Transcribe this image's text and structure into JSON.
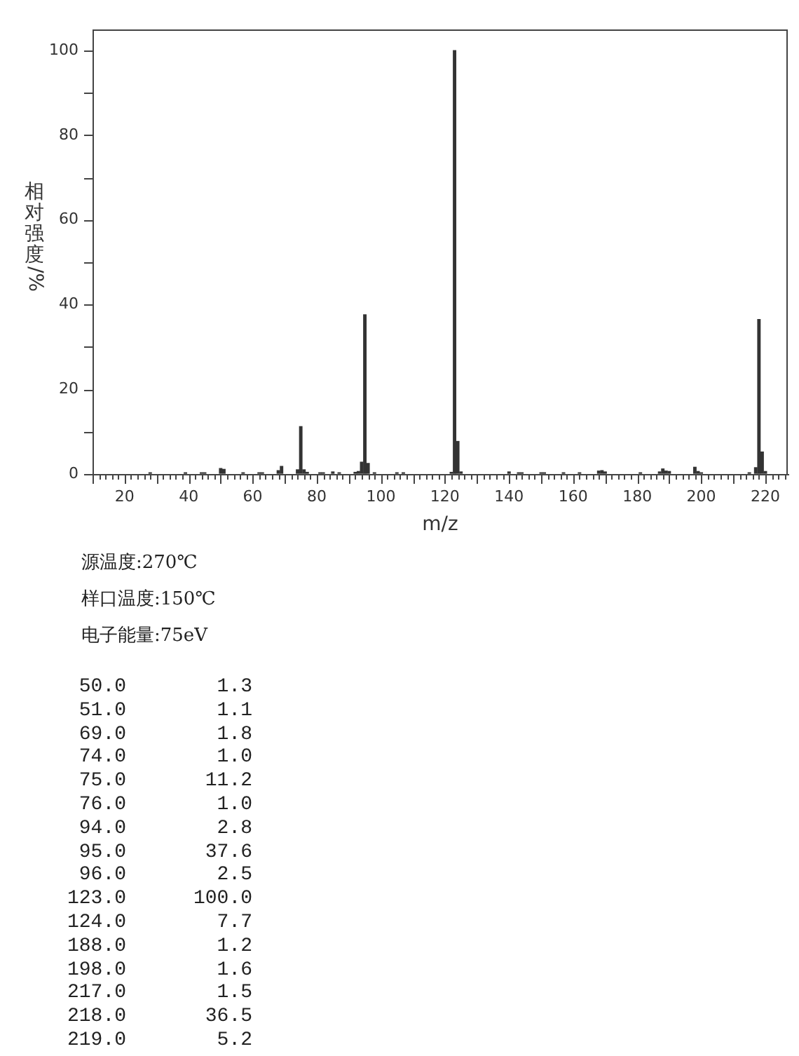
{
  "chart_data": [
    {
      "type": "bar",
      "xlabel": "m/z",
      "ylabel": "相对强度/%",
      "annotations": [
        "源温度:270℃",
        "样口温度:150℃",
        "电子能量:75eV"
      ],
      "series": [
        {
          "color": "#333333",
          "x": [
            28,
            39,
            44,
            45,
            50,
            51,
            57,
            62,
            63,
            68,
            69,
            74,
            75,
            76,
            77,
            81,
            82,
            85,
            87,
            92,
            93,
            94,
            95,
            96,
            98,
            105,
            107,
            122,
            123,
            124,
            125,
            140,
            143,
            144,
            150,
            151,
            157,
            162,
            168,
            169,
            170,
            181,
            187,
            188,
            189,
            190,
            198,
            199,
            200,
            215,
            217,
            218,
            219,
            220
          ],
          "values": [
            0.3,
            0.3,
            0.3,
            0.3,
            1.3,
            1.1,
            0.3,
            0.3,
            0.3,
            0.8,
            1.8,
            1.0,
            11.2,
            1.0,
            0.4,
            0.3,
            0.3,
            0.5,
            0.3,
            0.4,
            0.6,
            2.8,
            37.6,
            2.5,
            0.3,
            0.3,
            0.3,
            0.4,
            100.0,
            7.7,
            0.5,
            0.5,
            0.3,
            0.3,
            0.3,
            0.3,
            0.3,
            0.3,
            0.7,
            0.8,
            0.5,
            0.3,
            0.5,
            1.2,
            0.7,
            0.6,
            1.6,
            0.6,
            0.3,
            0.3,
            1.5,
            36.5,
            5.2,
            0.6
          ]
        }
      ],
      "xlim": [
        10,
        227
      ],
      "ylim": [
        0,
        105
      ],
      "xticks": [
        {
          "value": 10,
          "label": null
        },
        {
          "value": 12,
          "label": null
        },
        {
          "value": 14,
          "label": null
        },
        {
          "value": 16,
          "label": null
        },
        {
          "value": 18,
          "label": null
        },
        20,
        {
          "value": 22,
          "label": null
        },
        {
          "value": 24,
          "label": null
        },
        {
          "value": 26,
          "label": null
        },
        {
          "value": 28,
          "label": null
        },
        {
          "value": 30,
          "label": null
        },
        {
          "value": 32,
          "label": null
        },
        {
          "value": 34,
          "label": null
        },
        {
          "value": 36,
          "label": null
        },
        {
          "value": 38,
          "label": null
        },
        40,
        {
          "value": 42,
          "label": null
        },
        {
          "value": 44,
          "label": null
        },
        {
          "value": 46,
          "label": null
        },
        {
          "value": 48,
          "label": null
        },
        {
          "value": 50,
          "label": null
        },
        {
          "value": 52,
          "label": null
        },
        {
          "value": 54,
          "label": null
        },
        {
          "value": 56,
          "label": null
        },
        {
          "value": 58,
          "label": null
        },
        60,
        {
          "value": 62,
          "label": null
        },
        {
          "value": 64,
          "label": null
        },
        {
          "value": 66,
          "label": null
        },
        {
          "value": 68,
          "label": null
        },
        {
          "value": 70,
          "label": null
        },
        {
          "value": 72,
          "label": null
        },
        {
          "value": 74,
          "label": null
        },
        {
          "value": 76,
          "label": null
        },
        {
          "value": 78,
          "label": null
        },
        80,
        {
          "value": 82,
          "label": null
        },
        {
          "value": 84,
          "label": null
        },
        {
          "value": 86,
          "label": null
        },
        {
          "value": 88,
          "label": null
        },
        {
          "value": 90,
          "label": null
        },
        {
          "value": 92,
          "label": null
        },
        {
          "value": 94,
          "label": null
        },
        {
          "value": 96,
          "label": null
        },
        {
          "value": 98,
          "label": null
        },
        100,
        {
          "value": 102,
          "label": null
        },
        {
          "value": 104,
          "label": null
        },
        {
          "value": 106,
          "label": null
        },
        {
          "value": 108,
          "label": null
        },
        {
          "value": 110,
          "label": null
        },
        {
          "value": 112,
          "label": null
        },
        {
          "value": 114,
          "label": null
        },
        {
          "value": 116,
          "label": null
        },
        {
          "value": 118,
          "label": null
        },
        120,
        {
          "value": 122,
          "label": null
        },
        {
          "value": 124,
          "label": null
        },
        {
          "value": 126,
          "label": null
        },
        {
          "value": 128,
          "label": null
        },
        {
          "value": 130,
          "label": null
        },
        {
          "value": 132,
          "label": null
        },
        {
          "value": 134,
          "label": null
        },
        {
          "value": 136,
          "label": null
        },
        {
          "value": 138,
          "label": null
        },
        140,
        {
          "value": 142,
          "label": null
        },
        {
          "value": 144,
          "label": null
        },
        {
          "value": 146,
          "label": null
        },
        {
          "value": 148,
          "label": null
        },
        {
          "value": 150,
          "label": null
        },
        {
          "value": 152,
          "label": null
        },
        {
          "value": 154,
          "label": null
        },
        {
          "value": 156,
          "label": null
        },
        {
          "value": 158,
          "label": null
        },
        160,
        {
          "value": 162,
          "label": null
        },
        {
          "value": 164,
          "label": null
        },
        {
          "value": 166,
          "label": null
        },
        {
          "value": 168,
          "label": null
        },
        {
          "value": 170,
          "label": null
        },
        {
          "value": 172,
          "label": null
        },
        {
          "value": 174,
          "label": null
        },
        {
          "value": 176,
          "label": null
        },
        {
          "value": 178,
          "label": null
        },
        180,
        {
          "value": 182,
          "label": null
        },
        {
          "value": 184,
          "label": null
        },
        {
          "value": 186,
          "label": null
        },
        {
          "value": 188,
          "label": null
        },
        {
          "value": 190,
          "label": null
        },
        {
          "value": 192,
          "label": null
        },
        {
          "value": 194,
          "label": null
        },
        {
          "value": 196,
          "label": null
        },
        {
          "value": 198,
          "label": null
        },
        200,
        {
          "value": 202,
          "label": null
        },
        {
          "value": 204,
          "label": null
        },
        {
          "value": 206,
          "label": null
        },
        {
          "value": 208,
          "label": null
        },
        {
          "value": 210,
          "label": null
        },
        {
          "value": 212,
          "label": null
        },
        {
          "value": 214,
          "label": null
        },
        {
          "value": 216,
          "label": null
        },
        {
          "value": 218,
          "label": null
        },
        220,
        {
          "value": 222,
          "label": null
        },
        {
          "value": 224,
          "label": null
        },
        {
          "value": 226,
          "label": null
        }
      ],
      "yticks": [
        0,
        {
          "value": 10,
          "label": null
        },
        20,
        {
          "value": 30,
          "label": null
        },
        40,
        {
          "value": 50,
          "label": null
        },
        60,
        {
          "value": 70,
          "label": null
        },
        80,
        {
          "value": 90,
          "label": null
        },
        100
      ]
    },
    {
      "type": "other",
      "annotations": [
        "50.0",
        "1.3",
        "51.0",
        "1.1",
        "69.0",
        "1.8",
        "74.0",
        "1.0",
        "75.0",
        "11.2",
        "76.0",
        "1.0",
        "94.0",
        "2.8",
        "95.0",
        "37.6",
        "96.0",
        "2.5",
        "123.0",
        "100.0",
        "124.0",
        "7.7",
        "188.0",
        "1.2",
        "198.0",
        "1.6",
        "217.0",
        "1.5",
        "218.0",
        "36.5",
        "219.0",
        "5.2"
      ]
    }
  ]
}
